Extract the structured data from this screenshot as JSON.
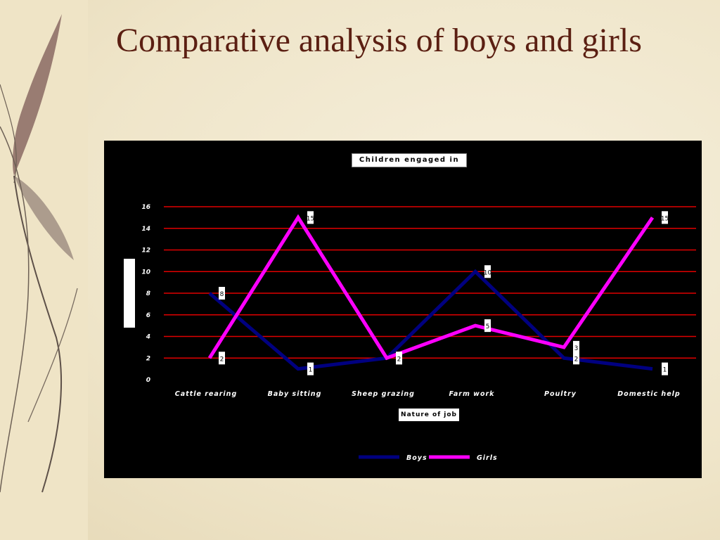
{
  "slide": {
    "title": "Comparative analysis of boys and girls"
  },
  "colors": {
    "background": "#efe5c9",
    "title": "#5b1f12",
    "panel": "#000000",
    "gridline": "#e00000",
    "boys": "#000080",
    "girls": "#ff00ff"
  },
  "chart_data": {
    "type": "line",
    "title": "Children engaged in",
    "xlabel": "Nature of job",
    "ylabel": "",
    "categories": [
      "Cattle rearing",
      "Baby sitting",
      "Sheep grazing",
      "Farm work",
      "Poultry",
      "Domestic help"
    ],
    "series": [
      {
        "name": "Boys",
        "values": [
          8,
          1,
          2,
          10,
          2,
          1
        ],
        "color": "#000080"
      },
      {
        "name": "Girls",
        "values": [
          2,
          15,
          2,
          5,
          3,
          15
        ],
        "color": "#ff00ff"
      }
    ],
    "ylim": [
      0,
      16
    ],
    "yticks": [
      0,
      2,
      4,
      6,
      8,
      10,
      12,
      14,
      16
    ],
    "grid": true,
    "legend": "bottom"
  }
}
